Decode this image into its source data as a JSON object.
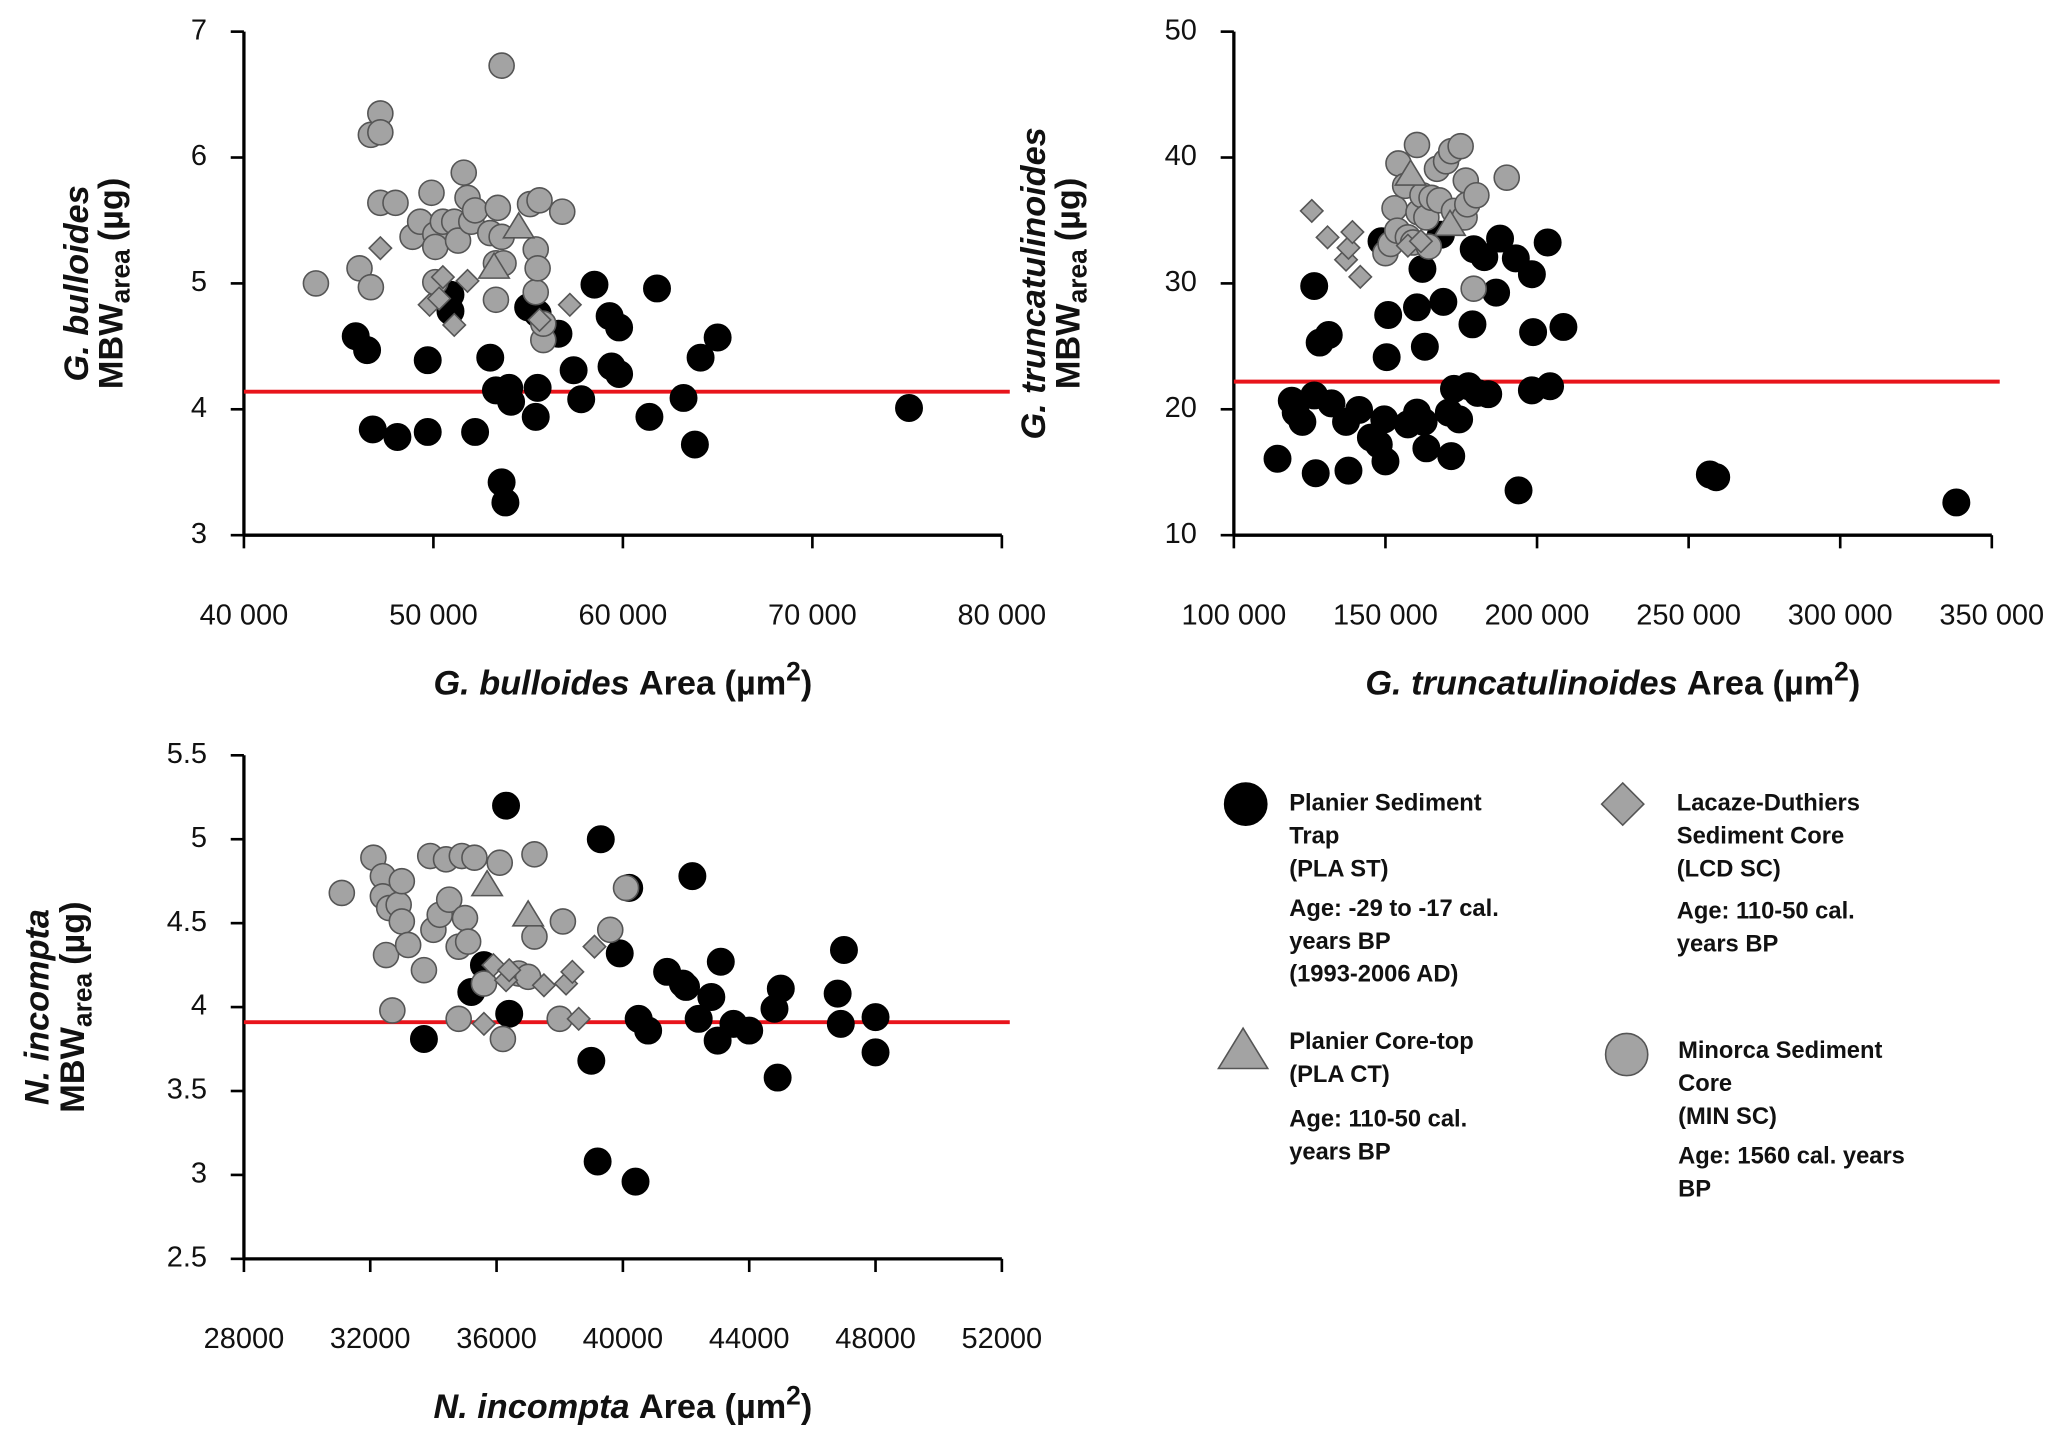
{
  "chart_data": [
    {
      "type": "scatter",
      "y_label": {
        "species": "G. bulloides",
        "main": "MBW",
        "sub": "area",
        "unit": "(µg)"
      },
      "x_label": {
        "species": "G. bulloides",
        "main": "Area (µm",
        "sup": "2",
        "end": ")"
      },
      "xlim": [
        40000,
        80000
      ],
      "xticks": [
        {
          "value": 40000,
          "label": "40 000"
        },
        {
          "value": 50000,
          "label": "50 000"
        },
        {
          "value": 60000,
          "label": "60 000"
        },
        {
          "value": 70000,
          "label": "70 000"
        },
        {
          "value": 80000,
          "label": "80 000"
        }
      ],
      "ylim": [
        3,
        7
      ],
      "yticks": [
        3,
        4,
        5,
        6,
        7
      ],
      "reference_line": {
        "value": 4.14,
        "color": "#e8141b"
      },
      "series": [
        {
          "name": "PLA ST",
          "marker": "circle",
          "color": "#000000",
          "x": [
            45900,
            46500,
            46800,
            48100,
            49700,
            49700,
            50900,
            50900,
            52200,
            53000,
            53300,
            53600,
            53800,
            54000,
            54100,
            55000,
            55500,
            55400,
            55500,
            56600,
            57400,
            57800,
            58500,
            59300,
            59400,
            59800,
            59800,
            61400,
            61800,
            63200,
            63800,
            64100,
            65000,
            75100
          ],
          "values": [
            4.58,
            4.47,
            3.84,
            3.78,
            3.82,
            4.39,
            4.91,
            4.78,
            3.82,
            4.41,
            4.15,
            3.42,
            3.26,
            4.17,
            4.06,
            4.81,
            4.76,
            3.94,
            4.17,
            4.6,
            4.31,
            4.08,
            4.99,
            4.74,
            4.34,
            4.65,
            4.28,
            3.94,
            4.96,
            4.09,
            3.72,
            4.41,
            4.57,
            4.01
          ]
        },
        {
          "name": "MIN SC",
          "marker": "circle",
          "color": "#a3a3a3",
          "x": [
            43800,
            46100,
            46700,
            46700,
            47200,
            47200,
            47200,
            48000,
            48900,
            49300,
            49900,
            50100,
            50100,
            50100,
            50500,
            51100,
            51300,
            51600,
            51800,
            52000,
            52200,
            53000,
            53300,
            53400,
            53600,
            53600,
            53700,
            53300,
            55100,
            55400,
            55600,
            55400,
            55500,
            55800,
            55800,
            56800
          ],
          "values": [
            5.0,
            5.12,
            4.97,
            6.18,
            6.35,
            6.2,
            5.64,
            5.64,
            5.37,
            5.49,
            5.72,
            5.39,
            5.29,
            5.01,
            5.49,
            5.49,
            5.34,
            5.88,
            5.68,
            5.49,
            5.58,
            5.4,
            5.16,
            5.6,
            6.73,
            5.37,
            5.16,
            4.87,
            5.63,
            5.27,
            5.66,
            4.93,
            5.12,
            4.55,
            4.68,
            5.57
          ]
        },
        {
          "name": "LCD SC",
          "marker": "diamond",
          "color": "#a3a3a3",
          "x": [
            47200,
            49800,
            50300,
            51100,
            51800,
            55600,
            57200,
            50500
          ],
          "values": [
            5.28,
            4.83,
            4.88,
            4.67,
            5.02,
            4.71,
            4.83,
            5.05
          ]
        },
        {
          "name": "PLA CT",
          "marker": "triangle",
          "color": "#a3a3a3",
          "x": [
            53200,
            54500
          ],
          "values": [
            5.13,
            5.45
          ]
        }
      ]
    },
    {
      "type": "scatter",
      "y_label": {
        "species": "G. truncatulinoides",
        "main": "MBW",
        "sub": "area",
        "unit": "(µg)"
      },
      "x_label": {
        "species": "G. truncatulinoides",
        "main": "Area (µm",
        "sup": "2",
        "end": ")"
      },
      "xlim": [
        100000,
        350000
      ],
      "xticks": [
        {
          "value": 100000,
          "label": "100 000"
        },
        {
          "value": 150000,
          "label": "150 000"
        },
        {
          "value": 200000,
          "label": "200 000"
        },
        {
          "value": 250000,
          "label": "250 000"
        },
        {
          "value": 300000,
          "label": "300 000"
        },
        {
          "value": 350000,
          "label": "350 000"
        }
      ],
      "ylim": [
        10,
        50
      ],
      "yticks": [
        10,
        20,
        30,
        40,
        50
      ],
      "reference_line": {
        "value": 22.2,
        "color": "#e8141b"
      },
      "series": [
        {
          "name": "PLA ST",
          "marker": "circle",
          "color": "#000000",
          "x": [
            114400,
            119100,
            120400,
            122600,
            126500,
            127000,
            126500,
            128300,
            131300,
            132200,
            137000,
            137800,
            141300,
            145200,
            147800,
            149600,
            150000,
            150900,
            150400,
            148700,
            157400,
            160400,
            160400,
            162200,
            163000,
            162600,
            163500,
            169100,
            168300,
            170900,
            171700,
            172600,
            174300,
            177400,
            179100,
            178700,
            180400,
            182600,
            183900,
            186500,
            187800,
            193000,
            193900,
            198300,
            198300,
            198700,
            203500,
            204300,
            208700,
            257000,
            259100,
            338300
          ],
          "values": [
            16.07,
            20.68,
            19.74,
            19.0,
            29.79,
            14.92,
            21.1,
            25.3,
            25.9,
            20.47,
            19.0,
            15.13,
            19.95,
            17.75,
            17.2,
            19.2,
            15.86,
            27.49,
            24.14,
            33.35,
            18.8,
            28.1,
            19.74,
            31.15,
            24.97,
            19.0,
            16.9,
            28.53,
            33.87,
            19.74,
            16.28,
            21.62,
            19.2,
            21.83,
            32.72,
            26.75,
            21.3,
            32.09,
            21.2,
            29.27,
            33.56,
            31.99,
            13.56,
            30.73,
            21.5,
            26.13,
            33.25,
            21.83,
            26.54,
            14.82,
            14.6,
            12.6
          ]
        },
        {
          "name": "MIN SC",
          "marker": "circle",
          "color": "#a3a3a3",
          "x": [
            150000,
            151700,
            153000,
            153900,
            154300,
            156500,
            157400,
            159100,
            160400,
            160900,
            162200,
            163500,
            164300,
            165200,
            167000,
            167800,
            170000,
            171700,
            172600,
            174800,
            176100,
            176500,
            177000,
            179100,
            180000,
            190000
          ],
          "values": [
            32.4,
            33.14,
            35.97,
            34.19,
            39.53,
            37.75,
            33.66,
            33.25,
            41.0,
            35.65,
            37.0,
            35.24,
            32.93,
            36.8,
            39.1,
            36.6,
            39.7,
            40.5,
            35.76,
            40.9,
            35.24,
            38.17,
            36.28,
            29.58,
            37.0,
            38.4
          ]
        },
        {
          "name": "LCD SC",
          "marker": "diamond",
          "color": "#a3a3a3",
          "x": [
            125700,
            130900,
            137000,
            137800,
            139100,
            141700,
            157400,
            161700
          ],
          "values": [
            35.76,
            33.66,
            31.88,
            32.83,
            34.08,
            30.52,
            33.0,
            33.35
          ]
        },
        {
          "name": "PLA CT",
          "marker": "triangle",
          "color": "#a3a3a3",
          "x": [
            158300,
            171300
          ],
          "values": [
            38.69,
            34.7
          ]
        }
      ]
    },
    {
      "type": "scatter",
      "y_label": {
        "species": "N. incompta",
        "main": "MBW",
        "sub": "area",
        "unit": "(µg)"
      },
      "x_label": {
        "species": "N. incompta",
        "main": "Area (µm",
        "sup": "2",
        "end": ")"
      },
      "xlim": [
        28000,
        52000
      ],
      "xticks": [
        28000,
        32000,
        36000,
        40000,
        44000,
        48000,
        52000
      ],
      "ylim": [
        2.5,
        5.5
      ],
      "yticks": [
        2.5,
        3,
        3.5,
        4,
        4.5,
        5,
        5.5
      ],
      "reference_line": {
        "value": 3.91,
        "color": "#e8141b"
      },
      "series": [
        {
          "name": "PLA ST",
          "marker": "circle",
          "color": "#000000",
          "x": [
            33700,
            35200,
            35600,
            36300,
            36400,
            39000,
            39300,
            39200,
            39900,
            40200,
            40400,
            40500,
            40800,
            41400,
            41900,
            42000,
            42200,
            42400,
            42800,
            43000,
            43100,
            43500,
            44000,
            44800,
            44900,
            45000,
            46800,
            47000,
            46900,
            48000,
            48000
          ],
          "values": [
            3.81,
            4.09,
            4.25,
            5.2,
            3.96,
            3.68,
            5.0,
            3.08,
            4.32,
            4.71,
            2.96,
            3.93,
            3.86,
            4.21,
            4.14,
            4.12,
            4.78,
            3.93,
            4.06,
            3.8,
            4.27,
            3.9,
            3.86,
            3.99,
            3.58,
            4.11,
            4.08,
            4.34,
            3.9,
            3.94,
            3.73
          ]
        },
        {
          "name": "MIN SC",
          "marker": "circle",
          "color": "#a3a3a3",
          "x": [
            31100,
            32100,
            32400,
            32400,
            32500,
            32600,
            32700,
            32900,
            33000,
            33000,
            33200,
            33700,
            33900,
            34000,
            34200,
            34400,
            34500,
            34800,
            34800,
            34900,
            35000,
            35100,
            35300,
            35600,
            36100,
            36200,
            36700,
            37000,
            37200,
            37200,
            38000,
            38100,
            39600,
            40100
          ],
          "values": [
            4.68,
            4.89,
            4.78,
            4.66,
            4.31,
            4.59,
            3.98,
            4.61,
            4.75,
            4.51,
            4.37,
            4.22,
            4.9,
            4.46,
            4.55,
            4.88,
            4.64,
            4.36,
            3.93,
            4.9,
            4.53,
            4.39,
            4.89,
            4.14,
            4.86,
            3.81,
            4.2,
            4.18,
            4.91,
            4.42,
            3.93,
            4.51,
            4.46,
            4.71
          ]
        },
        {
          "name": "LCD SC",
          "marker": "diamond",
          "color": "#a3a3a3",
          "x": [
            35600,
            35900,
            36300,
            36400,
            37500,
            38200,
            38400,
            38600,
            39100
          ],
          "values": [
            3.9,
            4.25,
            4.16,
            4.22,
            4.13,
            4.14,
            4.21,
            3.93,
            4.36
          ]
        },
        {
          "name": "PLA CT",
          "marker": "triangle",
          "color": "#a3a3a3",
          "x": [
            35700,
            37000
          ],
          "values": [
            4.73,
            4.55
          ]
        }
      ]
    }
  ],
  "legend": [
    {
      "marker": "circle",
      "color": "#000000",
      "lines": [
        "Planier Sediment",
        "Trap",
        "(PLA ST)"
      ],
      "age": [
        "Age: -29 to -17 cal.",
        "years BP",
        "(1993-2006 AD)"
      ]
    },
    {
      "marker": "triangle",
      "color": "#a3a3a3",
      "lines": [
        "Planier  Core-top",
        "(PLA CT)"
      ],
      "age": [
        "Age:  110-50  cal.",
        "years BP"
      ]
    },
    {
      "marker": "diamond",
      "color": "#a3a3a3",
      "lines": [
        "Lacaze-Duthiers",
        "Sediment Core",
        "(LCD SC)"
      ],
      "age": [
        "Age:  110-50  cal.",
        "years BP"
      ]
    },
    {
      "marker": "circle",
      "color": "#a3a3a3",
      "lines": [
        "Minorca  Sediment",
        "Core",
        "(MIN SC)"
      ],
      "age": [
        "Age: 1560 cal. years",
        "BP"
      ]
    }
  ]
}
